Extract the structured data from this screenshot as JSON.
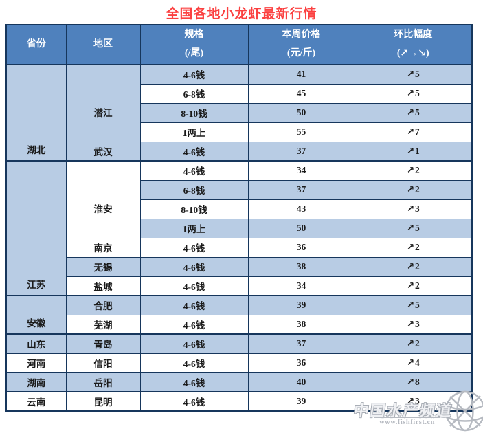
{
  "title": "全国各地小龙虾最新行情",
  "table": {
    "headers": [
      {
        "line1": "省份",
        "line2": ""
      },
      {
        "line1": "地区",
        "line2": ""
      },
      {
        "line1": "规格",
        "line2": "(/尾)"
      },
      {
        "line1": "本周价格",
        "line2": "(元/斤)"
      },
      {
        "line1": "环比幅度",
        "line2": "(↗→↘)"
      }
    ],
    "up_arrow": "↗",
    "groups": [
      {
        "province": "湖北",
        "regions": [
          {
            "name": "潜江",
            "entries": [
              {
                "spec": "4-6钱",
                "price": "41",
                "change": "5"
              },
              {
                "spec": "6-8钱",
                "price": "45",
                "change": "5"
              },
              {
                "spec": "8-10钱",
                "price": "50",
                "change": "5"
              },
              {
                "spec": "1两上",
                "price": "55",
                "change": "7"
              }
            ]
          },
          {
            "name": "武汉",
            "entries": [
              {
                "spec": "4-6钱",
                "price": "37",
                "change": "1"
              }
            ]
          }
        ]
      },
      {
        "province": "江苏",
        "regions": [
          {
            "name": "淮安",
            "entries": [
              {
                "spec": "4-6钱",
                "price": "34",
                "change": "2"
              },
              {
                "spec": "6-8钱",
                "price": "37",
                "change": "2"
              },
              {
                "spec": "8-10钱",
                "price": "43",
                "change": "3"
              },
              {
                "spec": "1两上",
                "price": "50",
                "change": "5"
              }
            ]
          },
          {
            "name": "南京",
            "entries": [
              {
                "spec": "4-6钱",
                "price": "36",
                "change": "2"
              }
            ]
          },
          {
            "name": "无锡",
            "entries": [
              {
                "spec": "4-6钱",
                "price": "38",
                "change": "2"
              }
            ]
          },
          {
            "name": "盐城",
            "entries": [
              {
                "spec": "4-6钱",
                "price": "34",
                "change": "2"
              }
            ]
          }
        ]
      },
      {
        "province": "安徽",
        "regions": [
          {
            "name": "合肥",
            "entries": [
              {
                "spec": "4-6钱",
                "price": "39",
                "change": "5"
              }
            ]
          },
          {
            "name": "芜湖",
            "entries": [
              {
                "spec": "4-6钱",
                "price": "38",
                "change": "3"
              }
            ]
          }
        ]
      },
      {
        "province": "山东",
        "regions": [
          {
            "name": "青岛",
            "entries": [
              {
                "spec": "4-6钱",
                "price": "37",
                "change": "2"
              }
            ]
          }
        ]
      },
      {
        "province": "河南",
        "regions": [
          {
            "name": "信阳",
            "entries": [
              {
                "spec": "4-6钱",
                "price": "36",
                "change": "4"
              }
            ]
          }
        ]
      },
      {
        "province": "湖南",
        "regions": [
          {
            "name": "岳阳",
            "entries": [
              {
                "spec": "4-6钱",
                "price": "40",
                "change": "8"
              }
            ]
          }
        ]
      },
      {
        "province": "云南",
        "regions": [
          {
            "name": "昆明",
            "entries": [
              {
                "spec": "4-6钱",
                "price": "39",
                "change": "3"
              }
            ]
          }
        ]
      }
    ]
  },
  "watermark": {
    "name": "中国水产频道",
    "url": "www.fishfirst.cn",
    "globe_icon": "globe-icon"
  },
  "colors": {
    "header_bg": "#4f81bd",
    "row_alt_bg": "#b8cce4",
    "border": "#16365c",
    "title_red": "#fb4141",
    "change_red": "#ee1433"
  }
}
